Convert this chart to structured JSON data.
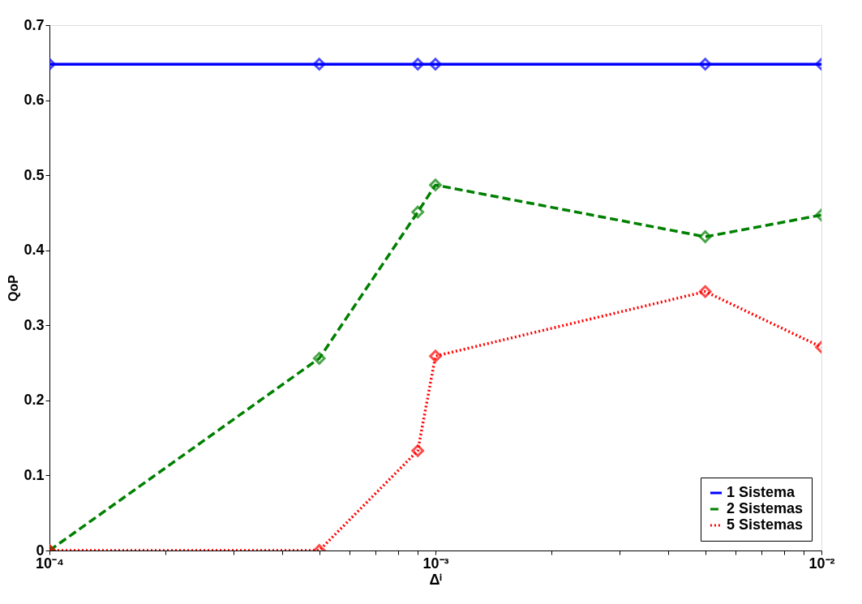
{
  "chart_data": {
    "type": "line",
    "xlabel": "Δⁱ",
    "ylabel": "QoP",
    "x": [
      0.0001,
      0.0005,
      0.0009,
      0.001,
      0.005,
      0.01
    ],
    "series": [
      {
        "name": "1 Sistema",
        "color": "#0000ff",
        "line_style": "solid",
        "values": [
          0.648,
          0.648,
          0.648,
          0.648,
          0.648,
          0.648
        ]
      },
      {
        "name": "2 Sistemas",
        "color": "#008000",
        "line_style": "dashed",
        "values": [
          0.0,
          0.256,
          0.451,
          0.487,
          0.418,
          0.447
        ]
      },
      {
        "name": "5 Sistemas",
        "color": "#ff0000",
        "line_style": "dotted",
        "values": [
          0.0,
          0.0,
          0.133,
          0.259,
          0.345,
          0.271
        ]
      }
    ],
    "log": "x",
    "xlim": [
      0.0001,
      0.01
    ],
    "xticks": [
      {
        "value": 0.0001,
        "label": "10⁻⁴"
      },
      {
        "value": 0.0002,
        "label": null
      },
      {
        "value": 0.0003,
        "label": null
      },
      {
        "value": 0.0004,
        "label": null
      },
      {
        "value": 0.0005,
        "label": null
      },
      {
        "value": 0.0006,
        "label": null
      },
      {
        "value": 0.0007,
        "label": null
      },
      {
        "value": 0.0008,
        "label": null
      },
      {
        "value": 0.0009,
        "label": null
      },
      {
        "value": 0.001,
        "label": "10⁻³"
      },
      {
        "value": 0.002,
        "label": null
      },
      {
        "value": 0.003,
        "label": null
      },
      {
        "value": 0.004,
        "label": null
      },
      {
        "value": 0.005,
        "label": null
      },
      {
        "value": 0.006,
        "label": null
      },
      {
        "value": 0.007,
        "label": null
      },
      {
        "value": 0.008,
        "label": null
      },
      {
        "value": 0.009,
        "label": null
      },
      {
        "value": 0.01,
        "label": "10⁻²"
      }
    ],
    "ylim": [
      0,
      0.7
    ],
    "yticks": [
      0,
      0.1,
      0.2,
      0.3,
      0.4,
      0.5,
      0.6,
      0.7
    ],
    "grid": false,
    "legend": "bottom right",
    "marker": "diamond"
  }
}
